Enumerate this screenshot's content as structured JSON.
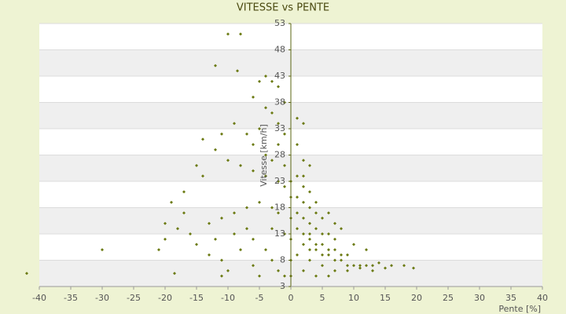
{
  "chart_data": {
    "type": "scatter",
    "title": "VITESSE vs PENTE",
    "x_label": "Pente [%]",
    "y_label": "Vitesse [km/h]",
    "xlim": [
      -40,
      40
    ],
    "xticks": [
      -40,
      -35,
      -30,
      -25,
      -20,
      -15,
      -10,
      -5,
      0,
      5,
      10,
      15,
      20,
      25,
      30,
      35,
      40
    ],
    "ylim": [
      3,
      53
    ],
    "yticks": [
      3,
      8,
      13,
      18,
      23,
      28,
      33,
      38,
      43,
      48,
      53
    ],
    "grid": true,
    "color": "#6b7a12",
    "x": [
      -42,
      -30,
      -18.5,
      -10,
      -8,
      -12,
      -8.5,
      -5,
      -4,
      -3,
      -2,
      -6,
      -4,
      -3,
      -1,
      -2,
      -5,
      -7,
      -9,
      -11,
      -14,
      -12,
      -10,
      -8,
      -6,
      -4,
      -2,
      -1,
      -15,
      -14,
      -17,
      -19,
      -17,
      -20,
      -18,
      -16,
      -13,
      -11,
      -9,
      -7,
      -5,
      -3,
      -2,
      -20,
      -21,
      -15,
      -13,
      -11,
      -10,
      -8,
      -6,
      -4,
      -3,
      -6,
      -2,
      -1,
      -5,
      -11,
      -12,
      -9,
      -7,
      -3,
      -1,
      -4,
      -2,
      -1,
      -6,
      -3,
      -1,
      0,
      0,
      0,
      0,
      0,
      0,
      1,
      2,
      1,
      2,
      1,
      2,
      3,
      1,
      2,
      3,
      4,
      1,
      2,
      3,
      4,
      5,
      6,
      7,
      1,
      2,
      3,
      4,
      5,
      6,
      7,
      8,
      9,
      2,
      3,
      4,
      5,
      6,
      7,
      8,
      9,
      10,
      11,
      12,
      13,
      14,
      15,
      16,
      18,
      19.5,
      3,
      5,
      7,
      9,
      11,
      13,
      2,
      4,
      6,
      1,
      3,
      5,
      7,
      8,
      10,
      12,
      4,
      6,
      2,
      3
    ],
    "y": [
      5.5,
      10,
      5.5,
      51,
      51,
      45,
      44,
      42,
      43,
      42,
      41,
      39,
      37,
      36,
      38,
      34,
      33,
      32,
      34,
      32,
      31,
      29,
      27,
      26,
      25,
      24,
      23,
      22,
      26,
      24,
      21,
      19,
      17,
      15,
      14,
      13,
      15,
      16,
      17,
      18,
      19,
      18,
      17,
      12,
      10,
      11,
      9,
      8,
      6,
      10,
      12,
      10,
      8,
      7,
      6,
      5,
      5,
      5,
      12,
      13,
      14,
      14,
      13,
      28,
      30,
      32,
      30,
      27,
      26,
      23,
      20,
      16,
      12,
      8,
      5,
      35,
      34,
      30,
      27,
      24,
      22,
      21,
      20,
      19,
      18,
      17,
      17,
      16,
      15,
      14,
      13,
      13,
      12,
      14,
      13,
      12,
      11,
      11,
      10,
      10,
      9,
      9,
      11,
      10,
      10,
      9,
      9,
      8,
      8,
      7,
      7,
      7,
      7,
      7,
      7.5,
      6.5,
      7,
      7,
      6.5,
      8,
      7,
      6,
      6,
      6.5,
      6,
      6,
      5,
      5,
      9,
      13,
      16,
      15,
      14,
      11,
      10,
      19,
      17,
      24,
      26
    ]
  }
}
